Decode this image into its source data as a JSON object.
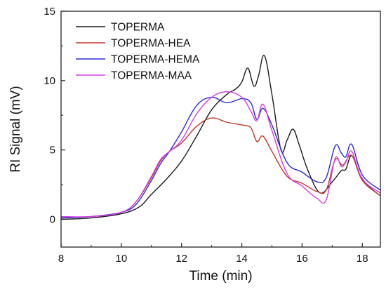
{
  "chart_data": {
    "type": "line",
    "title": "",
    "xlabel": "Time (min)",
    "ylabel": "RI Signal (mV)",
    "xlim": [
      8,
      18.6
    ],
    "ylim": [
      -2,
      15
    ],
    "xticks": [
      8,
      10,
      12,
      14,
      16,
      18
    ],
    "yticks": [
      0,
      5,
      10,
      15
    ],
    "grid": false,
    "legend_position": "top-left",
    "series": [
      {
        "name": "TOPERMA",
        "color": "#1a1a1a",
        "x": [
          8.0,
          9.0,
          10.0,
          10.6,
          11.0,
          11.5,
          12.0,
          12.5,
          13.0,
          13.5,
          13.8,
          14.0,
          14.2,
          14.4,
          14.55,
          14.75,
          15.0,
          15.3,
          15.5,
          15.7,
          15.9,
          16.2,
          16.6,
          17.0,
          17.3,
          17.45,
          17.65,
          17.9,
          18.2,
          18.6
        ],
        "y": [
          0.0,
          0.1,
          0.4,
          0.9,
          1.8,
          2.9,
          4.2,
          6.0,
          7.9,
          9.0,
          9.4,
          9.9,
          10.9,
          9.6,
          10.3,
          11.8,
          9.0,
          5.0,
          5.7,
          6.5,
          5.4,
          3.5,
          1.9,
          2.7,
          3.5,
          3.6,
          4.6,
          3.3,
          2.4,
          1.7
        ]
      },
      {
        "name": "TOPERMA-HEA",
        "color": "#c0392b",
        "x": [
          8.0,
          9.0,
          10.0,
          10.5,
          11.0,
          11.3,
          11.6,
          12.0,
          12.5,
          13.0,
          13.5,
          14.0,
          14.3,
          14.5,
          14.7,
          15.0,
          15.5,
          16.0,
          16.5,
          16.8,
          17.1,
          17.35,
          17.65,
          18.0,
          18.6
        ],
        "y": [
          0.1,
          0.2,
          0.5,
          1.3,
          3.0,
          4.2,
          4.9,
          5.5,
          6.7,
          7.3,
          7.0,
          6.8,
          6.6,
          5.6,
          6.0,
          4.9,
          3.1,
          2.6,
          2.0,
          2.1,
          4.3,
          3.9,
          4.6,
          2.8,
          1.7
        ]
      },
      {
        "name": "TOPERMA-HEMA",
        "color": "#2b2bd6",
        "x": [
          8.0,
          9.0,
          10.0,
          10.5,
          11.0,
          11.3,
          11.6,
          12.0,
          12.5,
          13.0,
          13.5,
          14.0,
          14.3,
          14.5,
          14.7,
          15.0,
          15.5,
          16.0,
          16.5,
          16.8,
          17.1,
          17.3,
          17.45,
          17.65,
          18.0,
          18.6
        ],
        "y": [
          0.1,
          0.2,
          0.5,
          1.1,
          2.8,
          4.0,
          4.9,
          6.3,
          8.2,
          8.8,
          8.4,
          8.7,
          8.4,
          7.2,
          8.0,
          6.8,
          4.1,
          3.4,
          2.7,
          3.0,
          5.3,
          4.8,
          4.5,
          5.4,
          3.2,
          2.1
        ]
      },
      {
        "name": "TOPERMA-MAA",
        "color": "#d63ce0",
        "x": [
          8.0,
          9.0,
          10.0,
          10.5,
          11.0,
          11.3,
          11.6,
          12.0,
          12.5,
          13.0,
          13.5,
          14.0,
          14.3,
          14.5,
          14.7,
          15.0,
          15.5,
          16.0,
          16.5,
          16.8,
          17.1,
          17.3,
          17.45,
          17.65,
          18.0,
          18.6
        ],
        "y": [
          0.2,
          0.2,
          0.5,
          1.3,
          3.1,
          4.3,
          4.9,
          5.7,
          7.6,
          8.8,
          9.2,
          8.8,
          7.8,
          7.1,
          8.3,
          6.4,
          3.3,
          2.4,
          1.5,
          1.4,
          4.4,
          3.8,
          4.1,
          4.9,
          2.9,
          1.9
        ]
      }
    ]
  }
}
